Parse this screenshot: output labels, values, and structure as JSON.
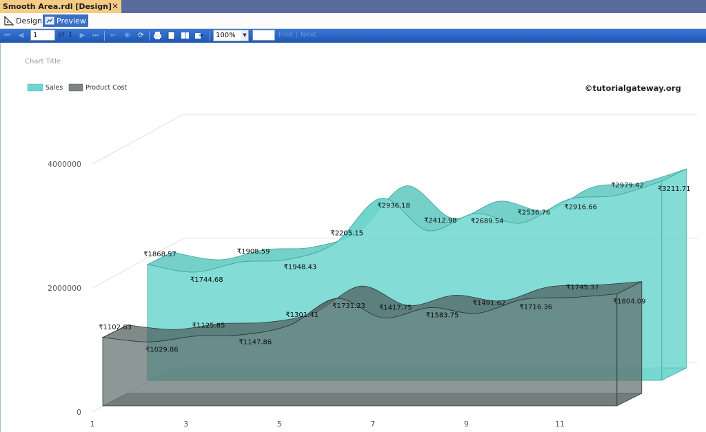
{
  "window": {
    "tab_title": "Smooth Area.rdl [Design]",
    "pin_glyph": "⊸",
    "close_glyph": "✕"
  },
  "modes": {
    "design_label": "Design",
    "preview_label": "Preview"
  },
  "toolbar": {
    "page_input": "1",
    "of_label": "of",
    "total_pages": "1",
    "zoom": "100%",
    "find_label": "Find",
    "next_label": "Next",
    "icons": [
      "first-page-icon",
      "prev-page-icon",
      "next-page-icon",
      "last-page-icon",
      "back-icon",
      "stop-icon",
      "refresh-icon",
      "print-icon",
      "print-layout-icon",
      "page-setup-icon",
      "export-icon"
    ]
  },
  "watermark": "©tutorialgateway.org",
  "colors": {
    "sales": "#6fd6cf",
    "sales_edge": "#3fa79f",
    "cost": "#5c6b6a",
    "cost_edge": "#2f3b3b",
    "toolbar": "#2a64c4",
    "active_tab": "#f5cc84"
  },
  "chart_data": {
    "type": "area",
    "subtype": "smooth-area-3d",
    "title": "Chart Title",
    "x": [
      1,
      2,
      3,
      4,
      5,
      6,
      7,
      8,
      9,
      10,
      11,
      12
    ],
    "x_ticks": [
      "1",
      "3",
      "5",
      "7",
      "9",
      "11"
    ],
    "y_ticks": [
      "0",
      "2000000",
      "4000000"
    ],
    "ylim": [
      0,
      4000000
    ],
    "legend_position": "top-left",
    "grid": true,
    "series": [
      {
        "name": "Sales",
        "values": [
          1868.57,
          1744.68,
          1908.59,
          1948.43,
          2205.15,
          2936.18,
          2412.98,
          2689.54,
          2536.76,
          2916.66,
          2979.42,
          3211.71
        ],
        "labels": [
          "₹1868.57",
          "₹1744.68",
          "₹1908.59",
          "₹1948.43",
          "₹2205.15",
          "₹2936.18",
          "₹2412.98",
          "₹2689.54",
          "₹2536.76",
          "₹2916.66",
          "₹2979.42",
          "₹3211.71"
        ]
      },
      {
        "name": "Product Cost",
        "values": [
          1102.63,
          1029.86,
          1125.85,
          1147.86,
          1301.41,
          1731.23,
          1417.75,
          1583.75,
          1491.62,
          1716.36,
          1745.37,
          1804.09
        ],
        "labels": [
          "₹1102.63",
          "₹1029.86",
          "₹1125.85",
          "₹1147.86",
          "₹1301.41",
          "₹1731.23",
          "₹1417.75",
          "₹1583.75",
          "₹1491.62",
          "₹1716.36",
          "₹1745.37",
          "₹1804.09"
        ]
      }
    ]
  }
}
